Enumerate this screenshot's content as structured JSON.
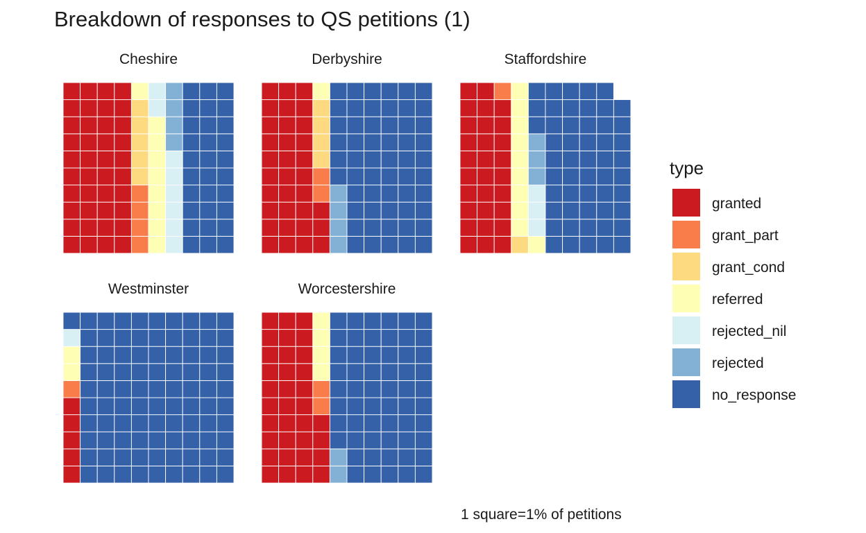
{
  "chart_data": {
    "type": "waffle",
    "title": "Breakdown of responses to QS petitions (1)",
    "caption": "1 square=1% of petitions",
    "legend": {
      "title": "type",
      "placement": "right",
      "entries": [
        {
          "key": "granted",
          "label": "granted",
          "color": "#CB1B20"
        },
        {
          "key": "grant_part",
          "label": "grant_part",
          "color": "#F97D4A"
        },
        {
          "key": "grant_cond",
          "label": "grant_cond",
          "color": "#FDDA7F"
        },
        {
          "key": "referred",
          "label": "referred",
          "color": "#FEFEB4"
        },
        {
          "key": "rejected_nil",
          "label": "rejected_nil",
          "color": "#D8EFF4"
        },
        {
          "key": "rejected",
          "label": "rejected",
          "color": "#82B1D5"
        },
        {
          "key": "no_response",
          "label": "no_response",
          "color": "#3461A8"
        }
      ]
    },
    "grid_rows": 10,
    "fill_order": "column-major, bottom-to-top, left-to-right",
    "facets": [
      {
        "name": "Cheshire",
        "counts": {
          "granted": 40,
          "grant_part": 4,
          "grant_cond": 5,
          "referred": 9,
          "rejected_nil": 8,
          "rejected": 4,
          "no_response": 30
        }
      },
      {
        "name": "Derbyshire",
        "counts": {
          "granted": 33,
          "grant_part": 2,
          "grant_cond": 4,
          "referred": 1,
          "rejected_nil": 0,
          "rejected": 4,
          "no_response": 56
        }
      },
      {
        "name": "Staffordshire",
        "counts": {
          "granted": 29,
          "grant_part": 1,
          "grant_cond": 1,
          "referred": 10,
          "rejected_nil": 3,
          "rejected": 3,
          "no_response": 52
        }
      },
      {
        "name": "Westminster",
        "counts": {
          "granted": 5,
          "grant_part": 1,
          "grant_cond": 0,
          "referred": 2,
          "rejected_nil": 1,
          "rejected": 0,
          "no_response": 91
        }
      },
      {
        "name": "Worcestershire",
        "counts": {
          "granted": 34,
          "grant_part": 2,
          "grant_cond": 0,
          "referred": 4,
          "rejected_nil": 0,
          "rejected": 2,
          "no_response": 58
        }
      }
    ]
  }
}
